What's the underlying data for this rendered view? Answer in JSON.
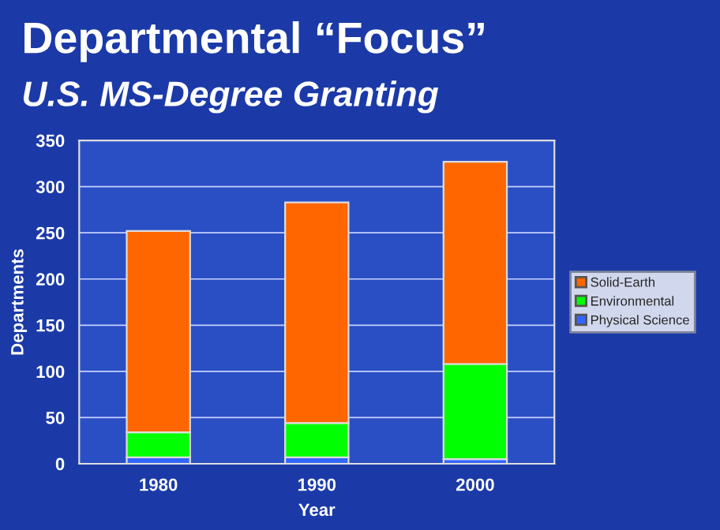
{
  "chart_data": {
    "type": "bar",
    "title": "Departmental “Focus”",
    "subtitle": "U.S. MS-Degree Granting",
    "xlabel": "Year",
    "ylabel": "Departments",
    "categories": [
      "1980",
      "1990",
      "2000"
    ],
    "stacked": true,
    "series": [
      {
        "name": "Physical Science",
        "color": "#3366ff",
        "values": [
          7,
          7,
          5
        ]
      },
      {
        "name": "Environmental",
        "color": "#00ff00",
        "values": [
          27,
          37,
          103
        ]
      },
      {
        "name": "Solid-Earth",
        "color": "#ff6600",
        "values": [
          218,
          239,
          219
        ]
      }
    ],
    "ylim": [
      0,
      350
    ],
    "yticks": [
      0,
      50,
      100,
      150,
      200,
      250,
      300,
      350
    ],
    "grid": "y",
    "legend": "right"
  }
}
